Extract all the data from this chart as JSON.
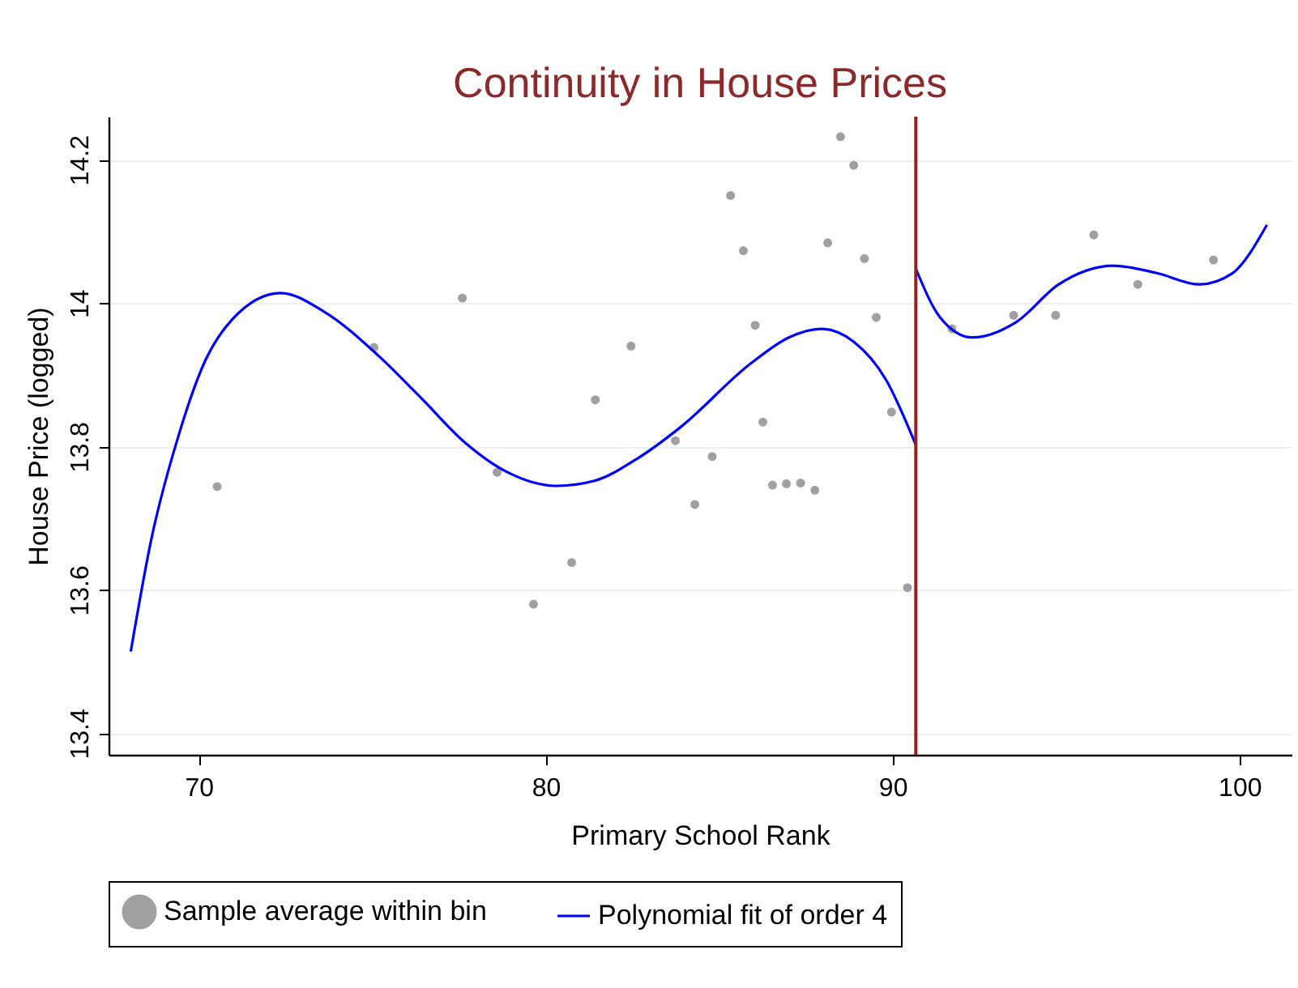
{
  "chart_data": {
    "type": "scatter",
    "title": "Continuity in House Prices",
    "xlabel": "Primary School Rank",
    "ylabel": "House Price (logged)",
    "xlim": [
      67.4,
      101.5
    ],
    "ylim": [
      13.37,
      14.26
    ],
    "xticks": [
      70,
      80,
      90,
      100
    ],
    "yticks": [
      13.4,
      13.6,
      13.8,
      14,
      14.2
    ],
    "grid": "y",
    "legend": "bottom",
    "series": [
      {
        "name": "Sample average within bin",
        "marker": "circle",
        "color": "#a0a0a0",
        "x": [
          70.53,
          75.05,
          77.6,
          78.6,
          79.65,
          80.75,
          81.43,
          82.46,
          83.74,
          84.3,
          84.8,
          85.33,
          85.7,
          86.04,
          86.26,
          86.54,
          86.94,
          87.35,
          87.76,
          88.13,
          88.5,
          88.88,
          89.19,
          89.53,
          89.97,
          90.43,
          91.71,
          93.49,
          94.7,
          95.8,
          97.07,
          99.25
        ],
        "values": [
          13.744,
          13.938,
          14.007,
          13.764,
          13.58,
          13.638,
          13.865,
          13.94,
          13.808,
          13.719,
          13.786,
          14.15,
          14.073,
          13.969,
          13.834,
          13.746,
          13.748,
          13.749,
          13.739,
          14.084,
          14.232,
          14.192,
          14.062,
          13.98,
          13.848,
          13.603,
          13.964,
          13.983,
          13.983,
          14.095,
          14.026,
          14.06
        ]
      },
      {
        "name": "Polynomial fit of order 4",
        "type": "line",
        "color": "#0000ff",
        "line_style": "solid",
        "x": [
          68.04,
          68.63,
          69.41,
          70.19,
          70.96,
          72.36,
          73.61,
          75.17,
          76.42,
          77.66,
          78.9,
          80.31,
          81.4,
          82.64,
          83.89,
          85.92,
          87.01,
          87.94,
          88.88,
          89.81,
          90.67
        ],
        "values": [
          13.514,
          13.67,
          13.814,
          13.92,
          13.977,
          14.014,
          13.988,
          13.927,
          13.867,
          13.806,
          13.764,
          13.745,
          13.752,
          13.783,
          13.827,
          13.916,
          13.952,
          13.964,
          13.946,
          13.893,
          13.802
        ]
      },
      {
        "type": "line",
        "color": "#0000ff",
        "line_style": "solid",
        "x": [
          90.67,
          91.37,
          92.3,
          93.55,
          94.79,
          96.36,
          97.6,
          98.85,
          99.78,
          100.79
        ],
        "values": [
          14.048,
          13.98,
          13.952,
          13.973,
          14.026,
          14.052,
          14.042,
          14.026,
          14.041,
          14.109
        ]
      }
    ],
    "ref_lines": [
      {
        "axis": "x",
        "value": 90.67,
        "color": "#8b2323"
      }
    ]
  }
}
